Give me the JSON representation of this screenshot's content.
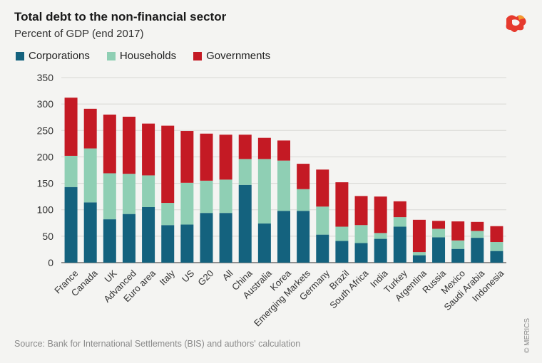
{
  "header": {
    "title": "Total debt to the non-financial sector",
    "subtitle": "Percent of GDP (end 2017)"
  },
  "footer": {
    "source": "Source: Bank for International Settlements (BIS) and authors' calculation",
    "copyright": "© MERICS"
  },
  "colors": {
    "corporations": "#14627e",
    "households": "#8fcfb4",
    "governments": "#c41a24",
    "grid": "#d8d8d4",
    "axis": "#555555",
    "logo": "#e63a2e"
  },
  "logo": {
    "icon": "merics-logo-icon"
  },
  "chart_data": {
    "type": "bar",
    "stacked": true,
    "title": "Total debt to the non-financial sector",
    "subtitle": "Percent of GDP (end 2017)",
    "xlabel": "",
    "ylabel": "",
    "ylim": [
      0,
      350
    ],
    "yticks": [
      0,
      50,
      100,
      150,
      200,
      250,
      300,
      350
    ],
    "grid": true,
    "legend_position": "top-left",
    "categories": [
      "France",
      "Canada",
      "UK",
      "Advanced",
      "Euro area",
      "Italy",
      "US",
      "G20",
      "All",
      "China",
      "Australia",
      "Korea",
      "Emerging Markets",
      "Germany",
      "Brazil",
      "South Africa",
      "India",
      "Turkey",
      "Argentina",
      "Russia",
      "Mexico",
      "Saudi Arabia",
      "Indonesia"
    ],
    "series": [
      {
        "name": "Corporations",
        "values": [
          143,
          114,
          82,
          92,
          105,
          71,
          72,
          94,
          94,
          147,
          74,
          98,
          98,
          53,
          41,
          37,
          45,
          68,
          14,
          48,
          26,
          47,
          22
        ]
      },
      {
        "name": "Households",
        "values": [
          59,
          102,
          87,
          76,
          60,
          42,
          79,
          61,
          63,
          49,
          122,
          95,
          41,
          53,
          27,
          34,
          11,
          18,
          6,
          16,
          16,
          13,
          17
        ]
      },
      {
        "name": "Governments",
        "values": [
          110,
          75,
          111,
          108,
          98,
          146,
          98,
          89,
          85,
          46,
          40,
          38,
          48,
          70,
          84,
          55,
          69,
          30,
          61,
          15,
          36,
          17,
          30
        ]
      }
    ]
  }
}
